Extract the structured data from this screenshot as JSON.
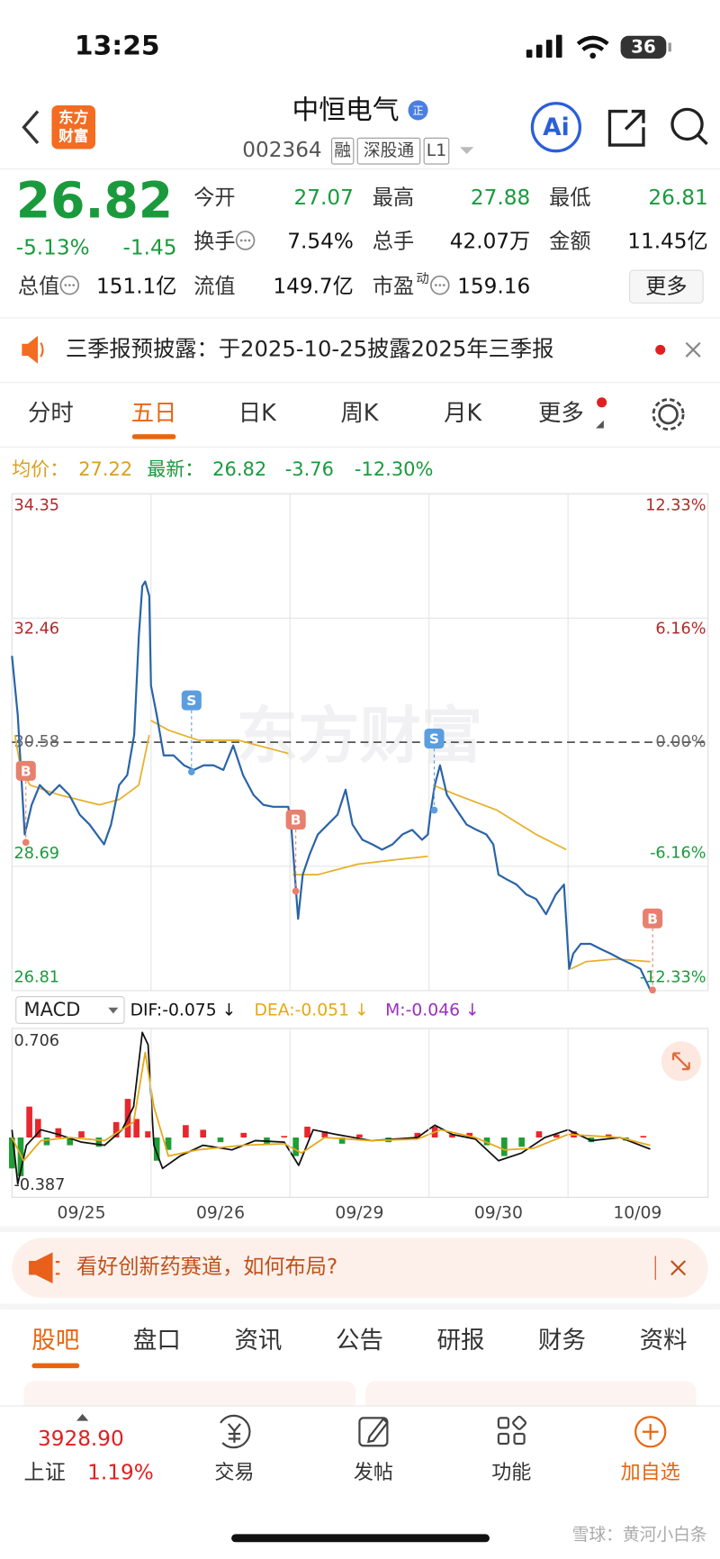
{
  "status_bar": {
    "time": "13:25",
    "battery": "36"
  },
  "header": {
    "logo_lines": [
      "东方",
      "财富"
    ],
    "title": "中恒电气",
    "badge": "正",
    "code": "002364",
    "tags": [
      "融",
      "深股通",
      "L1"
    ],
    "ai": "Ai"
  },
  "quote": {
    "price": "26.82",
    "change_pct": "-5.13%",
    "change": "-1.45",
    "more": "更多",
    "stats": [
      {
        "label": "今开",
        "value": "27.07",
        "color": "#1a9a3c"
      },
      {
        "label": "最高",
        "value": "27.88",
        "color": "#1a9a3c"
      },
      {
        "label": "最低",
        "value": "26.81",
        "color": "#1a9a3c"
      },
      {
        "label": "换手",
        "value": "7.54%",
        "info": true
      },
      {
        "label": "总手",
        "value": "42.07万"
      },
      {
        "label": "金额",
        "value": "11.45亿"
      },
      {
        "label": "总值",
        "value": "151.1亿",
        "info": true
      },
      {
        "label": "流值",
        "value": "149.7亿"
      },
      {
        "label": "市盈",
        "sup": "动",
        "value": "159.16",
        "info": true
      }
    ]
  },
  "notice": {
    "text": "三季报预披露：于2025-10-25披露2025年三季报"
  },
  "tabs": {
    "items": [
      "分时",
      "五日",
      "日K",
      "周K",
      "月K",
      "更多"
    ],
    "active": 1
  },
  "summary": {
    "avg_label": "均价：",
    "avg": "27.22",
    "latest_label": "最新：",
    "latest": "26.82",
    "change": "-3.76",
    "change_pct": "-12.30%"
  },
  "chart_watermark": "东方财富",
  "chart_data": [
    {
      "type": "line",
      "xlim": [
        0,
        1200
      ],
      "xgrid": [
        240,
        480,
        720,
        960
      ],
      "ylim": [
        26.81,
        34.35
      ],
      "yticks": [
        34.35,
        32.46,
        30.58,
        28.69,
        26.81
      ],
      "y2lim": [
        -12.33,
        12.33
      ],
      "y2ticks": [
        {
          "value": 12.33,
          "label": "12.33%"
        },
        {
          "value": 6.16,
          "label": "6.16%"
        },
        {
          "value": 0,
          "label": "0.00%"
        },
        {
          "value": -6.16,
          "label": "-6.16%"
        },
        {
          "value": -12.33,
          "label": "-12.33%"
        }
      ],
      "series": [
        {
          "color": "#2a64a8",
          "x": [
            0,
            10,
            22,
            34,
            48,
            65,
            82,
            99,
            117,
            134,
            159,
            171,
            185,
            199,
            211,
            219,
            225,
            230,
            237,
            240,
            250,
            262,
            279,
            297,
            314,
            331,
            348,
            365,
            382,
            399,
            417,
            434,
            451,
            477,
            482,
            487,
            494,
            502,
            514,
            528,
            545,
            562,
            576,
            588,
            605,
            622,
            639,
            657,
            674,
            691,
            708,
            718,
            722,
            730,
            739,
            751,
            768,
            785,
            802,
            819,
            831,
            840,
            854,
            871,
            888,
            905,
            922,
            939,
            953,
            962,
            969,
            982,
            999,
            1017,
            1034,
            1051,
            1068,
            1085,
            1102
          ],
          "values": [
            31.89,
            30.99,
            29.18,
            29.63,
            29.93,
            29.78,
            29.93,
            29.78,
            29.48,
            29.33,
            29.03,
            29.33,
            29.93,
            30.08,
            30.69,
            32.19,
            32.95,
            33.02,
            32.8,
            31.44,
            30.99,
            30.38,
            30.38,
            30.23,
            30.16,
            30.23,
            30.23,
            30.16,
            30.53,
            30.08,
            29.78,
            29.63,
            29.6,
            29.6,
            29.33,
            28.73,
            27.9,
            28.57,
            28.88,
            29.18,
            29.33,
            29.48,
            29.86,
            29.33,
            29.1,
            29.03,
            28.95,
            29.03,
            29.18,
            29.25,
            29.1,
            29.18,
            29.48,
            29.93,
            30.23,
            29.78,
            29.55,
            29.33,
            29.25,
            29.18,
            29.03,
            28.57,
            28.5,
            28.42,
            28.27,
            28.2,
            27.97,
            28.27,
            28.42,
            27.14,
            27.37,
            27.52,
            27.52,
            27.44,
            27.37,
            27.29,
            27.22,
            27.14,
            26.82
          ]
        },
        {
          "color": "#e6b12a",
          "x": [
            5,
            14,
            31,
            82,
            151,
            185,
            219,
            237,
            null,
            240,
            271,
            322,
            391,
            477,
            null,
            485,
            528,
            597,
            665,
            718,
            null,
            727,
            768,
            837,
            905,
            957,
            null,
            965,
            991,
            1042,
            1102
          ],
          "values": [
            30.69,
            30.23,
            29.93,
            29.78,
            29.63,
            29.71,
            29.93,
            30.69,
            null,
            30.91,
            30.76,
            30.61,
            30.61,
            30.41,
            null,
            28.57,
            28.57,
            28.73,
            28.8,
            28.85,
            null,
            29.93,
            29.78,
            29.55,
            29.18,
            28.95,
            null,
            27.14,
            27.25,
            27.29,
            27.25
          ]
        }
      ],
      "markers": [
        {
          "label": "B",
          "x": 24,
          "value": 29.06,
          "color": "#e8806e"
        },
        {
          "label": "S",
          "x": 310,
          "value": 30.13,
          "color": "#5a9ee0"
        },
        {
          "label": "B",
          "x": 490,
          "value": 28.32,
          "color": "#e8806e"
        },
        {
          "label": "S",
          "x": 729,
          "value": 29.55,
          "color": "#5a9ee0"
        },
        {
          "label": "B",
          "x": 1106,
          "value": 26.82,
          "color": "#e8806e"
        }
      ]
    },
    {
      "type": "bar",
      "indicator": "MACD",
      "xlim": [
        0,
        1200
      ],
      "ylim": [
        -0.387,
        0.706
      ],
      "yticks": [
        0.706,
        -0.387
      ],
      "xticks": [
        {
          "value": 120,
          "label": "09/25"
        },
        {
          "value": 360,
          "label": "09/26"
        },
        {
          "value": 600,
          "label": "09/29"
        },
        {
          "value": 840,
          "label": "09/30"
        },
        {
          "value": 1080,
          "label": "10/09"
        }
      ],
      "series": [
        {
          "label": "DIF:-0.075 ↓",
          "type": "line",
          "color": "#111111",
          "x": [
            0,
            10,
            25,
            50,
            80,
            120,
            160,
            190,
            210,
            225,
            235,
            245,
            260,
            290,
            330,
            380,
            420,
            470,
            495,
            520,
            560,
            620,
            700,
            730,
            760,
            800,
            840,
            880,
            920,
            960,
            1000,
            1050,
            1102
          ],
          "values": [
            0.05,
            -0.3,
            -0.05,
            0.05,
            0.02,
            -0.03,
            -0.05,
            0.05,
            0.2,
            0.68,
            0.6,
            -0.05,
            -0.2,
            -0.12,
            -0.05,
            -0.08,
            -0.02,
            -0.03,
            -0.18,
            0.05,
            0.02,
            -0.02,
            0,
            0.08,
            0.02,
            -0.01,
            -0.15,
            -0.1,
            0,
            0.05,
            -0.02,
            0,
            -0.075
          ]
        },
        {
          "label": "DEA:-0.051 ↓",
          "type": "line",
          "color": "#e6a817",
          "x": [
            0,
            20,
            50,
            100,
            160,
            210,
            230,
            245,
            270,
            320,
            400,
            470,
            500,
            540,
            620,
            700,
            740,
            800,
            850,
            900,
            960,
            1050,
            1102
          ],
          "values": [
            0,
            -0.15,
            -0.02,
            0,
            -0.02,
            0.1,
            0.55,
            0.2,
            -0.12,
            -0.08,
            -0.05,
            -0.04,
            -0.1,
            0,
            -0.02,
            -0.01,
            0.05,
            0,
            -0.08,
            -0.07,
            0.02,
            0,
            -0.051
          ]
        },
        {
          "label": "M:-0.046 ↓",
          "type": "bar",
          "color": "#9b30c0",
          "up_color": "#e8262d",
          "down_color": "#1f9e35",
          "x": [
            0,
            15,
            30,
            45,
            60,
            80,
            100,
            120,
            150,
            180,
            200,
            215,
            235,
            250,
            270,
            300,
            330,
            360,
            400,
            440,
            470,
            490,
            510,
            540,
            570,
            600,
            650,
            700,
            730,
            760,
            790,
            820,
            850,
            880,
            910,
            940,
            970,
            1000,
            1030,
            1060,
            1090
          ],
          "values": [
            -0.2,
            -0.25,
            0.2,
            0.12,
            -0.05,
            0.06,
            -0.05,
            0.04,
            -0.06,
            0.1,
            0.25,
            0.12,
            0.04,
            -0.15,
            -0.08,
            0.08,
            0.05,
            -0.03,
            0.03,
            -0.04,
            0.01,
            -0.12,
            0.07,
            0.04,
            -0.04,
            0.02,
            -0.03,
            0.03,
            0.07,
            0.02,
            0.03,
            -0.05,
            -0.12,
            -0.06,
            0.04,
            0.02,
            0.04,
            -0.03,
            0.02,
            -0.02,
            0.01
          ]
        }
      ]
    }
  ],
  "banner": {
    "text": "看好创新药赛道，如何布局?"
  },
  "bottom_tabs": {
    "items": [
      "股吧",
      "盘口",
      "资讯",
      "公告",
      "研报",
      "财务",
      "资料"
    ],
    "active": 0
  },
  "bottom_nav": {
    "index_value": "3928.90",
    "index_name": "上证",
    "index_change": "1.19%",
    "items": [
      "交易",
      "发帖",
      "功能",
      "加自选"
    ]
  },
  "watermark": "雪球：黄河小白条"
}
